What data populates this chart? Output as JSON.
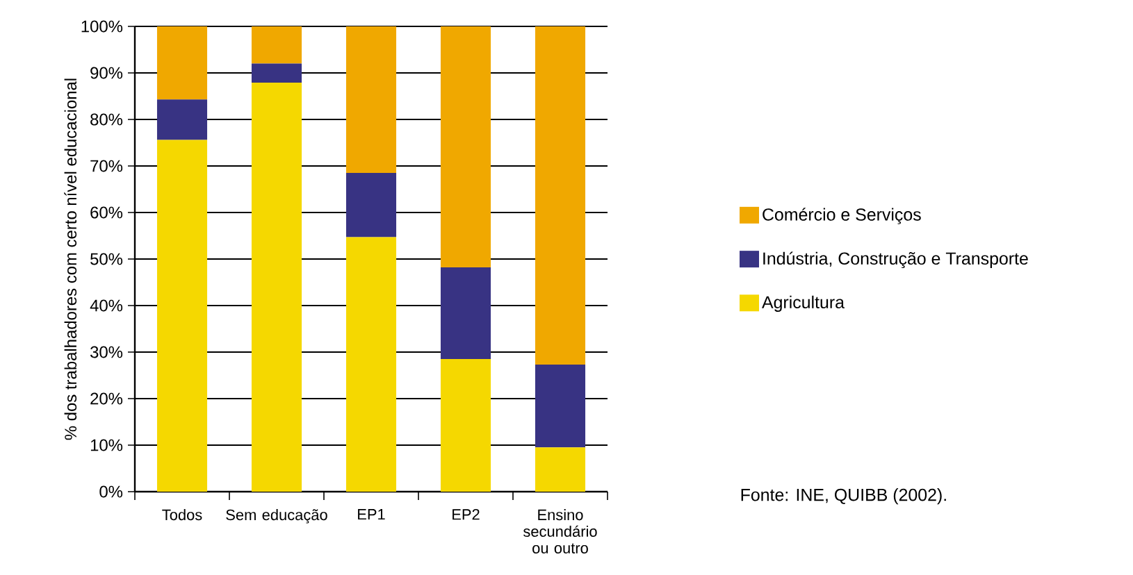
{
  "chart_data": {
    "type": "bar",
    "stacked": true,
    "ylabel": "% dos trabalhadores com certo nível educacional",
    "categories": [
      "Todos",
      "Sem educação",
      "EP1",
      "EP2",
      "Ensino secundário ou outro"
    ],
    "series": [
      {
        "name": "Agricultura",
        "color": "#f5d800",
        "values": [
          75.6,
          87.9,
          54.7,
          28.5,
          9.5
        ]
      },
      {
        "name": "Indústria, Construção e Transporte",
        "color": "#383383",
        "values": [
          8.7,
          4.1,
          13.8,
          19.7,
          17.8
        ]
      },
      {
        "name": "Comércio e Serviços",
        "color": "#f0a800",
        "values": [
          15.7,
          8.0,
          31.5,
          51.8,
          72.7
        ]
      }
    ],
    "ylim": [
      0,
      100
    ],
    "yticks": [
      {
        "value": 0,
        "label": "0%"
      },
      {
        "value": 10,
        "label": "10%"
      },
      {
        "value": 20,
        "label": "20%"
      },
      {
        "value": 30,
        "label": "30%"
      },
      {
        "value": 40,
        "label": "40%"
      },
      {
        "value": 50,
        "label": "50%"
      },
      {
        "value": 60,
        "label": "60%"
      },
      {
        "value": 70,
        "label": "70%"
      },
      {
        "value": 80,
        "label": "80%"
      },
      {
        "value": 90,
        "label": "90%"
      },
      {
        "value": 100,
        "label": "100%"
      }
    ],
    "grid": "y",
    "legend": "right",
    "annotations": [
      "Fonte: INE, QUIBB (2002)."
    ]
  }
}
